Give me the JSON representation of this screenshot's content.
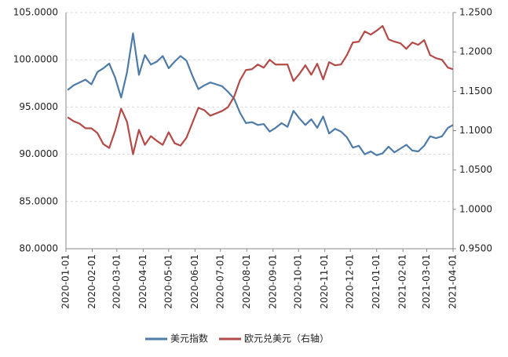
{
  "chart_data": {
    "type": "line",
    "x": [
      "2020-01-03",
      "2020-01-10",
      "2020-01-17",
      "2020-01-24",
      "2020-01-31",
      "2020-02-07",
      "2020-02-14",
      "2020-02-21",
      "2020-02-28",
      "2020-03-06",
      "2020-03-13",
      "2020-03-20",
      "2020-03-27",
      "2020-04-03",
      "2020-04-10",
      "2020-04-17",
      "2020-04-24",
      "2020-05-01",
      "2020-05-08",
      "2020-05-15",
      "2020-05-22",
      "2020-05-29",
      "2020-06-05",
      "2020-06-12",
      "2020-06-19",
      "2020-06-26",
      "2020-07-03",
      "2020-07-10",
      "2020-07-17",
      "2020-07-24",
      "2020-07-31",
      "2020-08-07",
      "2020-08-14",
      "2020-08-21",
      "2020-08-28",
      "2020-09-04",
      "2020-09-11",
      "2020-09-18",
      "2020-09-25",
      "2020-10-02",
      "2020-10-09",
      "2020-10-16",
      "2020-10-23",
      "2020-10-30",
      "2020-11-06",
      "2020-11-13",
      "2020-11-20",
      "2020-11-27",
      "2020-12-04",
      "2020-12-11",
      "2020-12-18",
      "2020-12-25",
      "2021-01-01",
      "2021-01-08",
      "2021-01-15",
      "2021-01-22",
      "2021-01-29",
      "2021-02-05",
      "2021-02-12",
      "2021-02-19",
      "2021-02-26",
      "2021-03-05",
      "2021-03-12",
      "2021-03-19",
      "2021-03-26",
      "2021-04-01"
    ],
    "series": [
      {
        "name": "美元指数",
        "color": "#4f7ba8",
        "values": [
          96.8,
          97.3,
          97.6,
          97.9,
          97.4,
          98.7,
          99.1,
          99.6,
          98.1,
          96.0,
          98.7,
          102.8,
          98.4,
          100.5,
          99.5,
          99.8,
          100.4,
          99.1,
          99.8,
          100.4,
          99.9,
          98.3,
          96.9,
          97.3,
          97.6,
          97.4,
          97.2,
          96.6,
          95.9,
          94.4,
          93.3,
          93.4,
          93.1,
          93.2,
          92.4,
          92.8,
          93.3,
          92.9,
          94.6,
          93.8,
          93.1,
          93.7,
          92.8,
          94.0,
          92.2,
          92.7,
          92.4,
          91.8,
          90.7,
          90.9,
          90.0,
          90.3,
          89.9,
          90.1,
          90.8,
          90.2,
          90.6,
          91.0,
          90.4,
          90.3,
          90.9,
          91.9,
          91.7,
          91.9,
          92.8,
          93.1
        ]
      },
      {
        "name": "欧元兑美元（右轴）",
        "color": "#b34a48",
        "axis": "y2",
        "values": [
          1.117,
          1.112,
          1.109,
          1.103,
          1.103,
          1.097,
          1.083,
          1.078,
          1.1,
          1.128,
          1.111,
          1.07,
          1.101,
          1.082,
          1.093,
          1.087,
          1.082,
          1.098,
          1.084,
          1.081,
          1.091,
          1.11,
          1.129,
          1.126,
          1.119,
          1.122,
          1.125,
          1.13,
          1.143,
          1.164,
          1.177,
          1.178,
          1.184,
          1.18,
          1.19,
          1.184,
          1.184,
          1.184,
          1.163,
          1.172,
          1.183,
          1.171,
          1.185,
          1.165,
          1.187,
          1.183,
          1.184,
          1.196,
          1.212,
          1.213,
          1.226,
          1.222,
          1.227,
          1.233,
          1.216,
          1.213,
          1.211,
          1.204,
          1.212,
          1.209,
          1.215,
          1.196,
          1.192,
          1.19,
          1.18,
          1.178
        ]
      }
    ],
    "xlim": [
      "2020-01-01",
      "2021-04-01"
    ],
    "xticks": [
      "2020-01-01",
      "2020-02-01",
      "2020-03-01",
      "2020-04-01",
      "2020-05-01",
      "2020-06-01",
      "2020-07-01",
      "2020-08-01",
      "2020-09-01",
      "2020-10-01",
      "2020-11-01",
      "2020-12-01",
      "2021-01-01",
      "2021-02-01",
      "2021-03-01",
      "2021-04-01"
    ],
    "ylim": [
      80,
      105
    ],
    "yticks": [
      {
        "value": 80,
        "label": "80.0000"
      },
      {
        "value": 85,
        "label": "85.0000"
      },
      {
        "value": 90,
        "label": "90.0000"
      },
      {
        "value": 95,
        "label": "95.0000"
      },
      {
        "value": 100,
        "label": "100.0000"
      },
      {
        "value": 105,
        "label": "105.0000"
      }
    ],
    "y2lim": [
      0.95,
      1.25
    ],
    "y2ticks": [
      {
        "value": 0.95,
        "label": "0.9500"
      },
      {
        "value": 1.0,
        "label": "1.0000"
      },
      {
        "value": 1.05,
        "label": "1.0500"
      },
      {
        "value": 1.1,
        "label": "1.1000"
      },
      {
        "value": 1.15,
        "label": "1.1500"
      },
      {
        "value": 1.2,
        "label": "1.2000"
      },
      {
        "value": 1.25,
        "label": "1.2500"
      }
    ],
    "grid": true,
    "legend": "bottom"
  }
}
